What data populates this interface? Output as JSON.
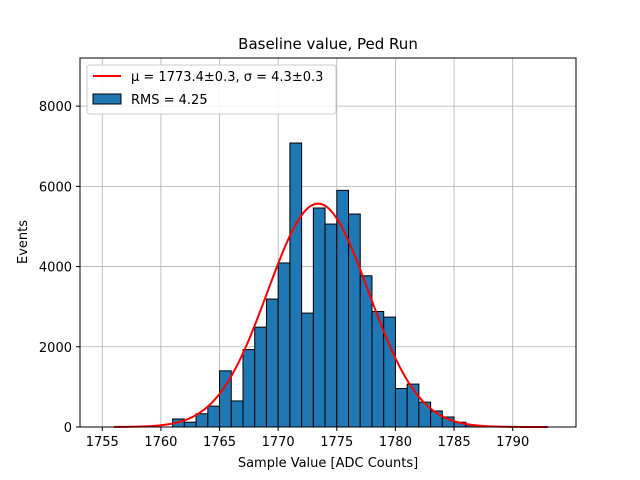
{
  "chart_data": {
    "type": "bar",
    "title": "Baseline value, Ped Run",
    "xlabel": "Sample Value [ADC Counts]",
    "ylabel": "Events",
    "xlim": [
      1753.1,
      1795.4
    ],
    "ylim": [
      0,
      9200
    ],
    "xticks": [
      1755,
      1760,
      1765,
      1770,
      1775,
      1780,
      1785,
      1790
    ],
    "yticks": [
      0,
      2000,
      4000,
      6000,
      8000
    ],
    "grid": true,
    "legend_position": "top-left",
    "bin_width": 1,
    "series": [
      {
        "name": "RMS = 4.25",
        "type": "histogram",
        "color": "#1f77b4",
        "edgecolor": "#000000",
        "bins": [
          {
            "left": 1761,
            "value": 200
          },
          {
            "left": 1762,
            "value": 120
          },
          {
            "left": 1763,
            "value": 330
          },
          {
            "left": 1764,
            "value": 520
          },
          {
            "left": 1765,
            "value": 1400
          },
          {
            "left": 1766,
            "value": 650
          },
          {
            "left": 1767,
            "value": 1930
          },
          {
            "left": 1768,
            "value": 2490
          },
          {
            "left": 1769,
            "value": 3190
          },
          {
            "left": 1770,
            "value": 4090
          },
          {
            "left": 1771,
            "value": 7080
          },
          {
            "left": 1772,
            "value": 2840
          },
          {
            "left": 1773,
            "value": 5460
          },
          {
            "left": 1774,
            "value": 5060
          },
          {
            "left": 1775,
            "value": 5900
          },
          {
            "left": 1776,
            "value": 5310
          },
          {
            "left": 1777,
            "value": 3770
          },
          {
            "left": 1778,
            "value": 2880
          },
          {
            "left": 1779,
            "value": 2740
          },
          {
            "left": 1780,
            "value": 960
          },
          {
            "left": 1781,
            "value": 1070
          },
          {
            "left": 1782,
            "value": 620
          },
          {
            "left": 1783,
            "value": 400
          },
          {
            "left": 1784,
            "value": 250
          },
          {
            "left": 1785,
            "value": 120
          },
          {
            "left": 1786,
            "value": 50
          }
        ]
      },
      {
        "name": "μ = 1773.4±0.3, σ = 4.3±0.3",
        "type": "gaussian-fit",
        "color": "#ff0000",
        "mu": 1773.4,
        "sigma": 4.3,
        "amplitude": 5570,
        "x_range": [
          1756,
          1793
        ]
      }
    ]
  }
}
